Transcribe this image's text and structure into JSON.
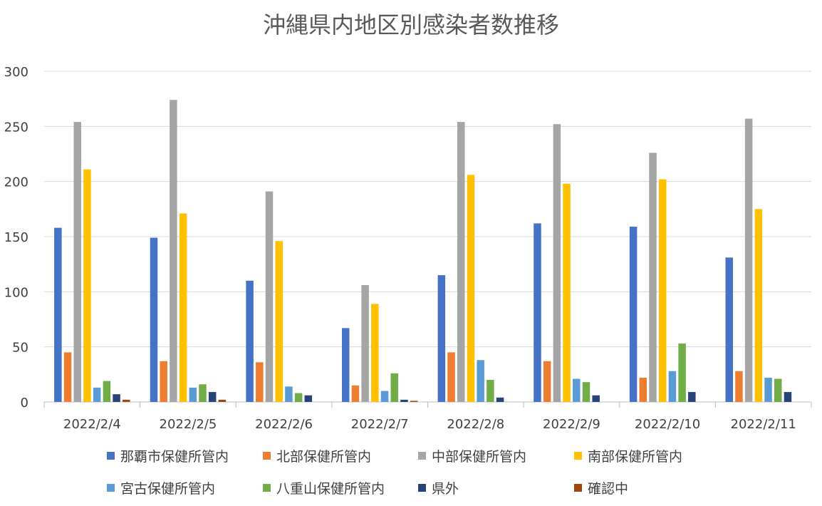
{
  "chart_data": {
    "type": "bar",
    "title": "沖縄県内地区別感染者数推移",
    "xlabel": "",
    "ylabel": "",
    "ylim": [
      0,
      300
    ],
    "yticks": [
      "0",
      "50",
      "100",
      "150",
      "200",
      "250",
      "300"
    ],
    "grid": true,
    "legend_position": "bottom",
    "categories": [
      "2022/2/4",
      "2022/2/5",
      "2022/2/6",
      "2022/2/7",
      "2022/2/8",
      "2022/2/9",
      "2022/2/10",
      "2022/2/11"
    ],
    "series": [
      {
        "name": "那覇市保健所管内",
        "color": "#4472C4",
        "values": [
          158,
          149,
          110,
          67,
          115,
          162,
          159,
          131
        ]
      },
      {
        "name": "北部保健所管内",
        "color": "#ED7D31",
        "values": [
          45,
          37,
          36,
          15,
          45,
          37,
          22,
          28
        ]
      },
      {
        "name": "中部保健所管内",
        "color": "#A5A5A5",
        "values": [
          254,
          274,
          191,
          106,
          254,
          252,
          226,
          257
        ]
      },
      {
        "name": "南部保健所管内",
        "color": "#FFC000",
        "values": [
          211,
          171,
          146,
          89,
          206,
          198,
          202,
          175
        ]
      },
      {
        "name": "宮古保健所管内",
        "color": "#5B9BD5",
        "values": [
          13,
          13,
          14,
          10,
          38,
          21,
          28,
          22
        ]
      },
      {
        "name": "八重山保健所管内",
        "color": "#70AD47",
        "values": [
          19,
          16,
          8,
          26,
          20,
          18,
          53,
          21
        ]
      },
      {
        "name": "県外",
        "color": "#264478",
        "values": [
          7,
          9,
          6,
          2,
          4,
          6,
          9,
          9
        ]
      },
      {
        "name": "確認中",
        "color": "#9E480E",
        "values": [
          2,
          2,
          0,
          1,
          0,
          0,
          0,
          0
        ]
      }
    ]
  }
}
